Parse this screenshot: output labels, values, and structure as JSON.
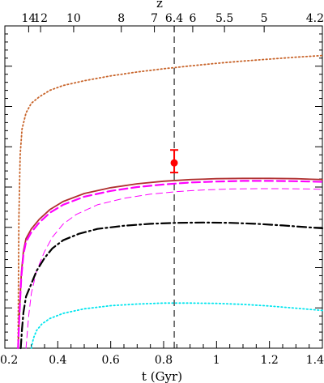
{
  "chart_data": {
    "type": "line",
    "xlabel": "t (Gyr)",
    "top_axis_label": "z",
    "xlim": [
      0.2,
      1.4
    ],
    "ylim": [
      0,
      1
    ],
    "y_tick_labels_shown": false,
    "x_ticks": [
      0.2,
      0.4,
      0.6,
      0.8,
      1,
      1.2,
      1.4
    ],
    "x_tick_labels": [
      "0.2",
      "0.4",
      "0.6",
      "0.8",
      "1",
      "1.2",
      "1.4"
    ],
    "top_ticks": [
      {
        "label": "14",
        "t": 0.29
      },
      {
        "label": "12",
        "t": 0.335
      },
      {
        "label": "10",
        "t": 0.46
      },
      {
        "label": "8",
        "t": 0.64
      },
      {
        "label": "7",
        "t": 0.765
      },
      {
        "label": "6.4",
        "t": 0.84
      },
      {
        "label": "6",
        "t": 0.91
      },
      {
        "label": "5.5",
        "t": 1.03
      },
      {
        "label": "5",
        "t": 1.18
      },
      {
        "label": "4.2",
        "t": 1.4
      }
    ],
    "vline": {
      "t": 0.84,
      "style": "dashed",
      "color": "#000000"
    },
    "point": {
      "t": 0.84,
      "y": 0.575,
      "yerr_low": 0.545,
      "yerr_high": 0.615,
      "color": "#ff0000"
    },
    "series": [
      {
        "style": "dotted",
        "color": "#c8642a",
        "x": [
          0.25,
          0.253,
          0.258,
          0.265,
          0.28,
          0.3,
          0.33,
          0.37,
          0.42,
          0.5,
          0.6,
          0.7,
          0.8,
          0.9,
          1.0,
          1.1,
          1.2,
          1.3,
          1.4
        ],
        "y": [
          0.0,
          0.4,
          0.6,
          0.68,
          0.73,
          0.76,
          0.78,
          0.8,
          0.815,
          0.83,
          0.845,
          0.857,
          0.867,
          0.876,
          0.884,
          0.891,
          0.897,
          0.903,
          0.908
        ]
      },
      {
        "style": "solid",
        "color": "#b03030",
        "x": [
          0.25,
          0.256,
          0.262,
          0.27,
          0.28,
          0.3,
          0.33,
          0.37,
          0.42,
          0.5,
          0.6,
          0.7,
          0.8,
          0.9,
          1.0,
          1.1,
          1.2,
          1.3,
          1.4
        ],
        "y": [
          0.0,
          0.13,
          0.23,
          0.3,
          0.34,
          0.37,
          0.4,
          0.43,
          0.455,
          0.48,
          0.498,
          0.51,
          0.518,
          0.523,
          0.526,
          0.527,
          0.527,
          0.526,
          0.523
        ]
      },
      {
        "style": "dashed",
        "color": "#ff00ff",
        "x": [
          0.25,
          0.256,
          0.262,
          0.27,
          0.28,
          0.3,
          0.33,
          0.37,
          0.42,
          0.5,
          0.6,
          0.7,
          0.8,
          0.9,
          1.0,
          1.1,
          1.2,
          1.3,
          1.4
        ],
        "y": [
          0.0,
          0.12,
          0.22,
          0.29,
          0.33,
          0.36,
          0.39,
          0.42,
          0.445,
          0.47,
          0.488,
          0.5,
          0.508,
          0.514,
          0.517,
          0.519,
          0.519,
          0.518,
          0.516
        ]
      },
      {
        "style": "thin-dashed",
        "color": "#ff00ff",
        "x": [
          0.28,
          0.29,
          0.3,
          0.32,
          0.35,
          0.38,
          0.42,
          0.47,
          0.55,
          0.65,
          0.75,
          0.85,
          0.95,
          1.05,
          1.15,
          1.25,
          1.35,
          1.4
        ],
        "y": [
          0.0,
          0.1,
          0.17,
          0.24,
          0.3,
          0.345,
          0.385,
          0.415,
          0.445,
          0.465,
          0.478,
          0.486,
          0.491,
          0.494,
          0.495,
          0.495,
          0.494,
          0.493
        ]
      },
      {
        "style": "dash-dot",
        "color": "#000000",
        "x": [
          0.26,
          0.265,
          0.27,
          0.28,
          0.3,
          0.32,
          0.35,
          0.38,
          0.42,
          0.48,
          0.55,
          0.65,
          0.75,
          0.85,
          0.95,
          1.05,
          1.15,
          1.25,
          1.35,
          1.4
        ],
        "y": [
          0.0,
          0.06,
          0.11,
          0.16,
          0.2,
          0.24,
          0.28,
          0.31,
          0.335,
          0.355,
          0.37,
          0.38,
          0.386,
          0.389,
          0.39,
          0.389,
          0.386,
          0.381,
          0.375,
          0.372
        ]
      },
      {
        "style": "dotted",
        "color": "#00e5ee",
        "x": [
          0.3,
          0.305,
          0.31,
          0.32,
          0.34,
          0.37,
          0.42,
          0.5,
          0.6,
          0.7,
          0.8,
          0.9,
          1.0,
          1.1,
          1.2,
          1.3,
          1.4
        ],
        "y": [
          0.0,
          0.02,
          0.035,
          0.055,
          0.075,
          0.092,
          0.108,
          0.122,
          0.132,
          0.137,
          0.14,
          0.14,
          0.139,
          0.136,
          0.131,
          0.124,
          0.117
        ]
      }
    ]
  }
}
